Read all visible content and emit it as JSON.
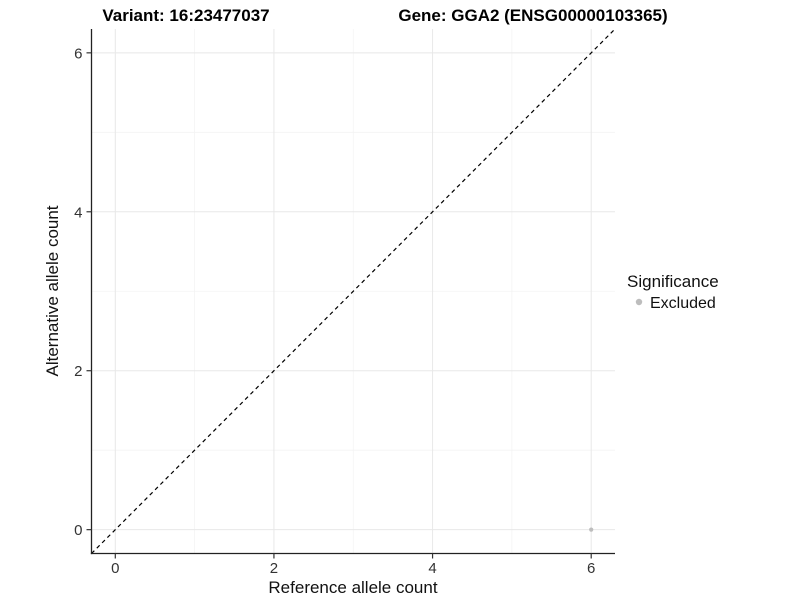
{
  "chart_data": {
    "type": "scatter",
    "title_variant": "Variant: 16:23477037",
    "title_gene": "Gene: GGA2 (ENSG00000103365)",
    "xlabel": "Reference allele count",
    "ylabel": "Alternative allele count",
    "x_ticks": [
      0,
      2,
      4,
      6
    ],
    "y_ticks": [
      0,
      2,
      4,
      6
    ],
    "minor_ticks": [
      1,
      3,
      5
    ],
    "xlim": [
      -0.3,
      6.3
    ],
    "ylim": [
      -0.3,
      6.3
    ],
    "points": [
      {
        "x": 6,
        "y": 0,
        "significance": "Excluded"
      }
    ],
    "identity_line": {
      "style": "dashed",
      "slope": 1,
      "intercept": 0
    },
    "legend": {
      "title": "Significance",
      "position": "right",
      "items": [
        {
          "label": "Excluded",
          "color": "#bdbdbd"
        }
      ]
    },
    "layout": {
      "grid": "on",
      "panel_background": "#ffffff"
    },
    "colors": {
      "point": "#bdbdbd",
      "axis_line": "#222222",
      "tick_label": "#333333",
      "grid_major": "#e8e8e8",
      "grid_minor": "#f3f3f3",
      "identity_line": "#000000",
      "background": "#ffffff"
    }
  }
}
